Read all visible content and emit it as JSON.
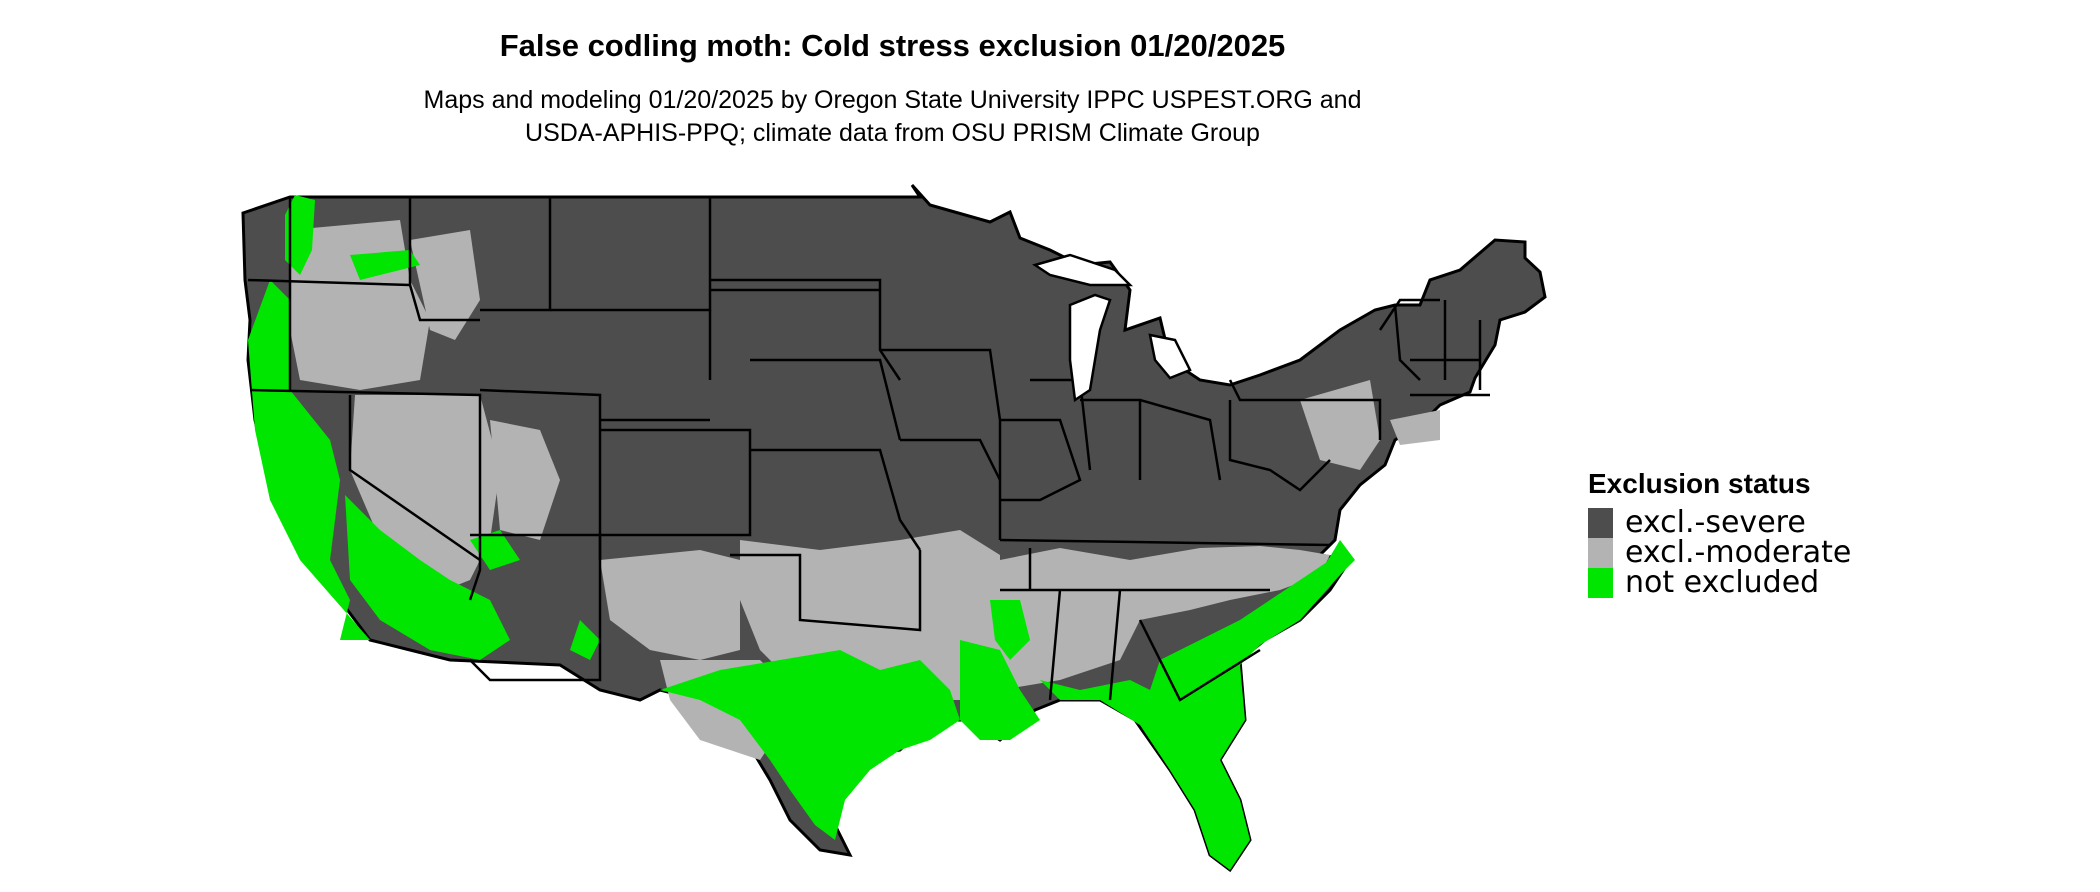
{
  "title": "False codling moth: Cold stress exclusion 01/20/2025",
  "subtitle_lines": [
    "Maps and modeling 01/20/2025 by Oregon State University IPPC USPEST.ORG and",
    "USDA-APHIS-PPQ; climate data from OSU PRISM Climate Group"
  ],
  "legend": {
    "title": "Exclusion status",
    "items": [
      {
        "label": "excl.-severe",
        "color": "#4d4d4d"
      },
      {
        "label": "excl.-moderate",
        "color": "#b3b3b3"
      },
      {
        "label": "not excluded",
        "color": "#00e600"
      }
    ]
  },
  "colors": {
    "severe": "#4d4d4d",
    "moderate": "#b3b3b3",
    "not_excluded": "#00e600",
    "border": "#000000"
  }
}
